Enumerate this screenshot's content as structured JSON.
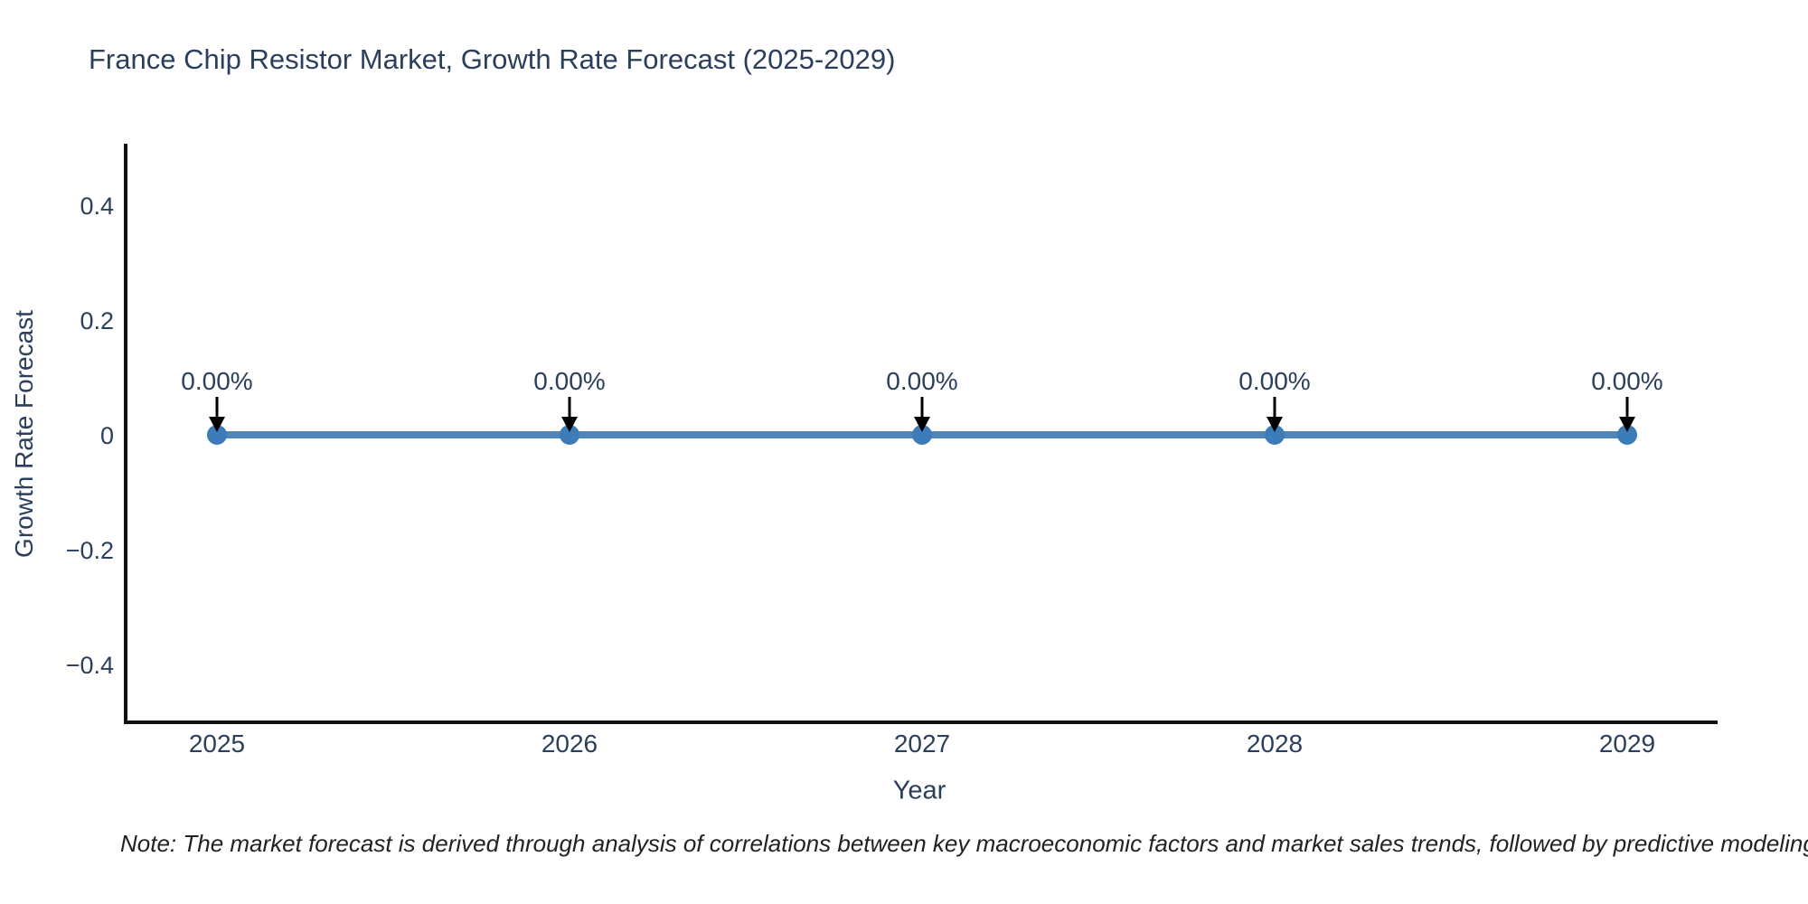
{
  "chart_data": {
    "type": "line",
    "title": "France Chip Resistor Market, Growth Rate Forecast (2025-2029)",
    "xlabel": "Year",
    "ylabel": "Growth Rate Forecast",
    "categories": [
      "2025",
      "2026",
      "2027",
      "2028",
      "2029"
    ],
    "series": [
      {
        "name": "Growth Rate Forecast",
        "values": [
          0,
          0,
          0,
          0,
          0
        ]
      }
    ],
    "point_labels": [
      "0.00%",
      "0.00%",
      "0.00%",
      "0.00%",
      "0.00%"
    ],
    "yticks": [
      0.4,
      0.2,
      0,
      -0.2,
      -0.4
    ],
    "ytick_labels": [
      "0.4",
      "0.2",
      "0",
      "−0.2",
      "−0.4"
    ],
    "ylim": [
      -0.505,
      0.505
    ],
    "grid": false,
    "legend": "none",
    "annotation_arrows": "down-arrow-to-point",
    "line_color": "#4e86b9",
    "marker_color": "#3c7cb9",
    "arrow_color": "#000000",
    "axis_color": "#111111",
    "text_color": "#2a3f5f",
    "note": "Note: The market forecast is derived through analysis of correlations between key macroeconomic factors and market sales trends, followed by predictive modeling to project future sal"
  }
}
